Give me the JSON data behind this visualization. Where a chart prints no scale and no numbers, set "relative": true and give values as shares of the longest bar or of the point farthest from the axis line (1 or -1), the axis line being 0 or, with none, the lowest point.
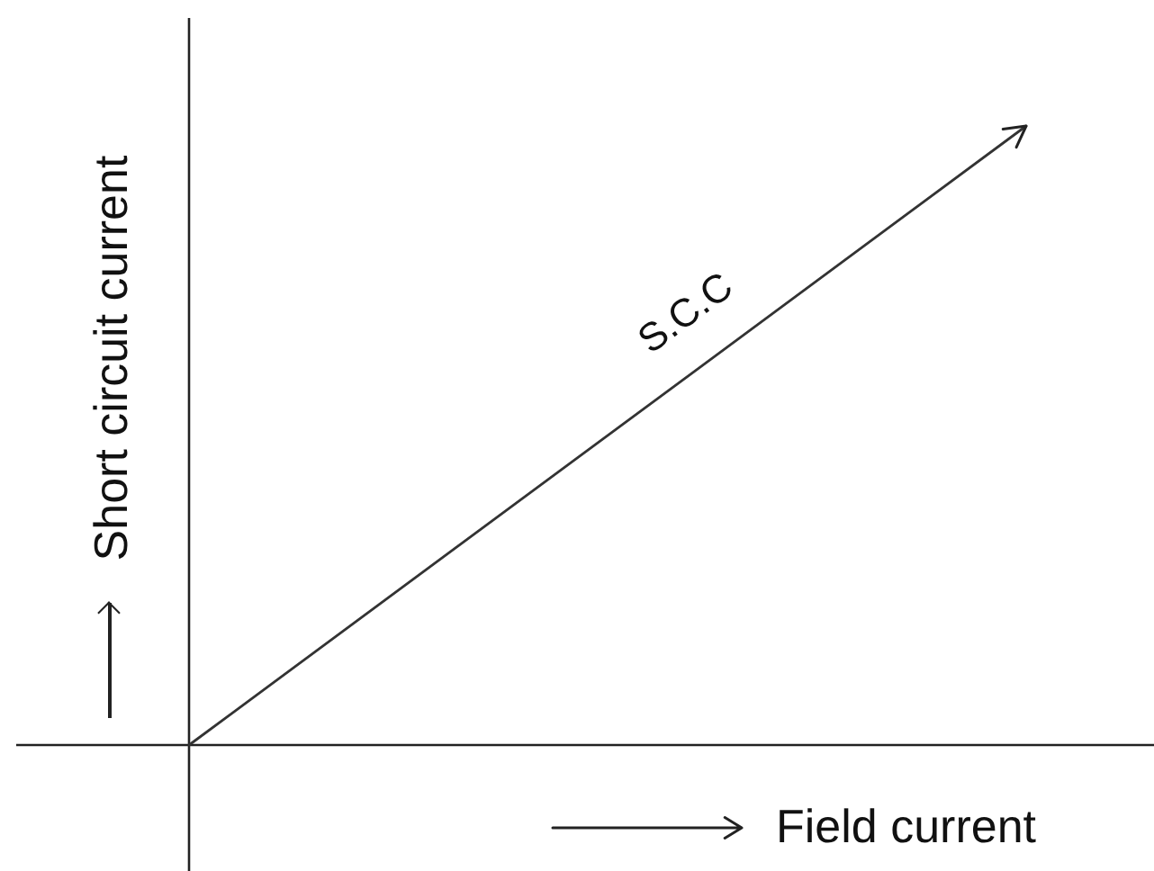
{
  "chart_data": {
    "type": "line",
    "xlabel": "Field current",
    "ylabel": "Short circuit current",
    "categories": [
      null,
      null
    ],
    "series": [
      {
        "name": "S.C.C",
        "color": "#333333",
        "values": [
          0,
          1
        ]
      }
    ],
    "relative": true,
    "marker": "none"
  }
}
